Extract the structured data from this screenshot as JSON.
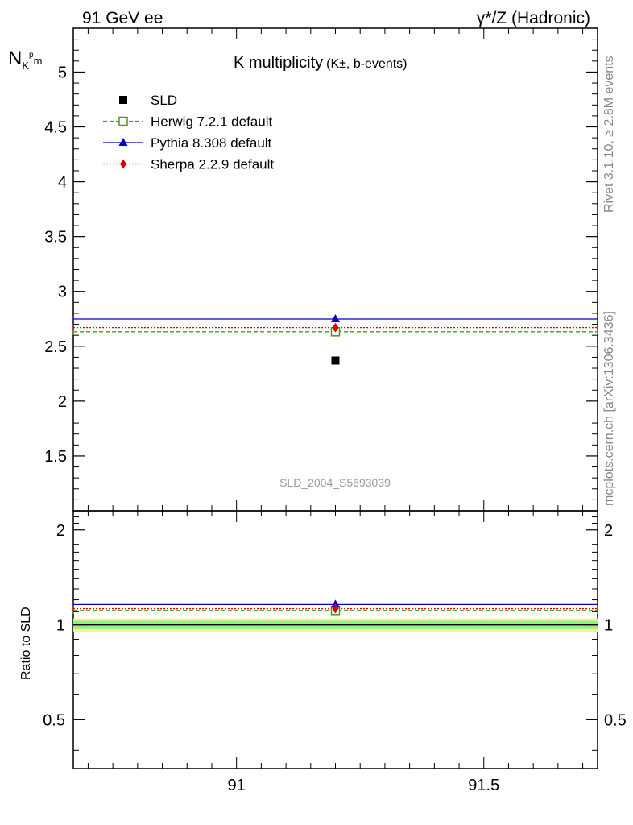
{
  "header": {
    "left_label": "91 GeV ee",
    "right_label": "γ*/Z (Hadronic)"
  },
  "side_labels": {
    "rivet": "Rivet 3.1.10, ≥ 2.8M events",
    "mcplots": "mcplots.cern.ch [arXiv:1306.3436]"
  },
  "watermark": "SLD_2004_S5693039",
  "chart_data": [
    {
      "type": "scatter",
      "title_main": "K multiplicity",
      "title_sub": "(K±, b-events)",
      "ylabel_main": "N",
      "ylabel_sub1": "K",
      "ylabel_sup": "p",
      "ylabel_sub2": "m",
      "xlim": [
        90.67,
        91.73
      ],
      "ylim": [
        1.0,
        5.4
      ],
      "yticks": [
        "1.5",
        "2",
        "2.5",
        "3",
        "3.5",
        "4",
        "4.5",
        "5"
      ],
      "ytick_values": [
        1.5,
        2,
        2.5,
        3,
        3.5,
        4,
        4.5,
        5
      ],
      "x_range": [
        90.67,
        91.73
      ],
      "x_center": 91.2,
      "series": [
        {
          "name": "SLD",
          "value": 2.37,
          "color": "#000000",
          "marker": "square",
          "line": "none"
        },
        {
          "name": "Herwig 7.2.1 default",
          "value": 2.632,
          "color": "#4a9a1a",
          "marker": "open-square",
          "line": "dashed"
        },
        {
          "name": "Pythia 8.308 default",
          "value": 2.748,
          "color": "#0000cc",
          "marker": "triangle",
          "line": "solid"
        },
        {
          "name": "Sherpa 2.2.9 default",
          "value": 2.67,
          "color": "#dd0000",
          "marker": "diamond",
          "line": "dotted"
        }
      ]
    },
    {
      "type": "scatter",
      "ylabel": "Ratio to SLD",
      "xlim": [
        90.67,
        91.73
      ],
      "ylim": [
        0.35,
        2.3
      ],
      "yticks": [
        "0.5",
        "1",
        "2"
      ],
      "ytick_values": [
        0.5,
        1,
        2
      ],
      "xticks": [
        "91",
        "91.5"
      ],
      "xtick_values": [
        91.0,
        91.5
      ],
      "band_inner": [
        0.97,
        1.03
      ],
      "band_outer": [
        0.952,
        1.048
      ],
      "band_inner_color": "#8ef08e",
      "band_outer_color": "#f2f588",
      "series": [
        {
          "name": "Herwig 7.2.1 default",
          "value": 1.11,
          "color": "#4a9a1a",
          "marker": "open-square",
          "line": "dashed"
        },
        {
          "name": "Pythia 8.308 default",
          "value": 1.16,
          "color": "#0000cc",
          "marker": "triangle",
          "line": "solid"
        },
        {
          "name": "Sherpa 2.2.9 default",
          "value": 1.125,
          "color": "#dd0000",
          "marker": "diamond",
          "line": "dotted"
        }
      ]
    }
  ]
}
